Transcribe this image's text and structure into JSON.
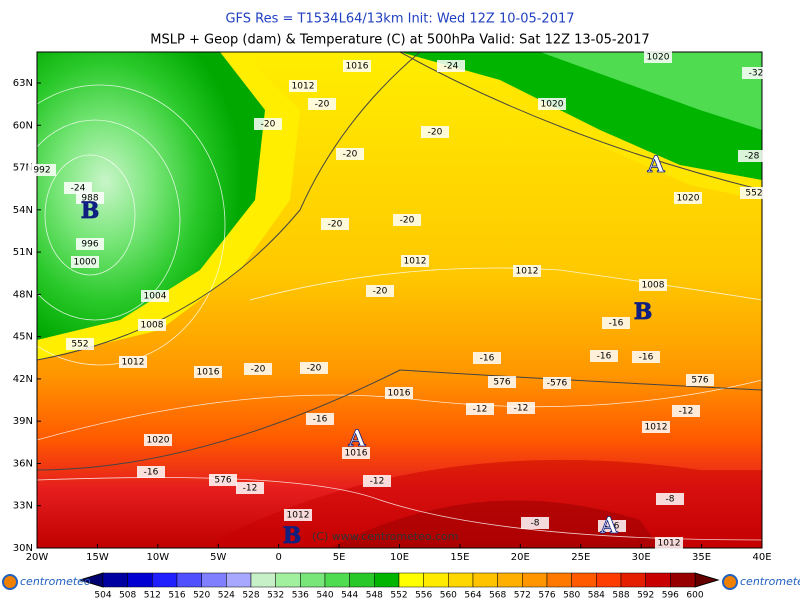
{
  "header": {
    "line1": "GFS Res = T1534L64/13km   Init: Wed 12Z 10-05-2017",
    "line2": "MSLP + Geop (dam) & Temperature (C) at 500hPa  Valid: Sat 12Z 13-05-2017"
  },
  "map": {
    "lat_labels": [
      "63N",
      "60N",
      "57N",
      "54N",
      "51N",
      "48N",
      "45N",
      "42N",
      "39N",
      "36N",
      "33N",
      "30N"
    ],
    "lon_labels": [
      "20W",
      "15W",
      "10W",
      "5W",
      "0",
      "5E",
      "10E",
      "15E",
      "20E",
      "25E",
      "30E",
      "35E",
      "40E"
    ],
    "centers": [
      "B",
      "B",
      "A",
      "A",
      "B",
      "A"
    ],
    "labels": [
      "1016",
      "1012",
      "-24",
      "-20",
      "-20",
      "-20",
      "-20",
      "1020",
      "1020",
      "-28",
      "552",
      "-32",
      "1020",
      "992",
      "988",
      "-24",
      "996",
      "1000",
      "1004",
      "1008",
      "552",
      "1012",
      "1016",
      "-20",
      "-20",
      "-20",
      "-20",
      "1012",
      "1012",
      "-20",
      "1008",
      "-16",
      "-16",
      "-16",
      "-16",
      "576",
      "-576",
      "576",
      "1016",
      "-12",
      "-12",
      "-12",
      "1012",
      "-16",
      "1020",
      "1016",
      "-16",
      "576",
      "-12",
      "-12",
      "1012",
      "-8",
      "-8",
      "-16",
      "1012"
    ],
    "watermark": "(C) www.centrometeo.com"
  },
  "colorbar": {
    "values": [
      504,
      508,
      512,
      516,
      520,
      524,
      528,
      532,
      536,
      540,
      544,
      548,
      552,
      556,
      560,
      564,
      568,
      572,
      576,
      580,
      584,
      588,
      592,
      596,
      600
    ]
  },
  "logos": [
    "centrometeo",
    "centrometeo"
  ]
}
